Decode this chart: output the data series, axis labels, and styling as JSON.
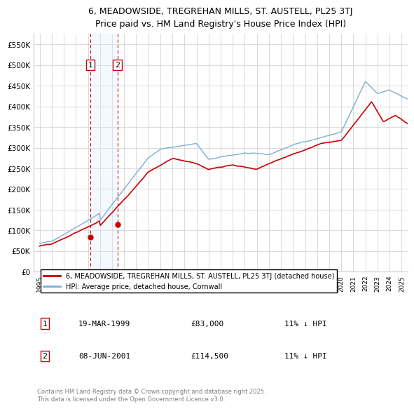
{
  "title": "6, MEADOWSIDE, TREGREHAN MILLS, ST. AUSTELL, PL25 3TJ",
  "subtitle": "Price paid vs. HM Land Registry's House Price Index (HPI)",
  "ylabel_ticks": [
    "£0",
    "£50K",
    "£100K",
    "£150K",
    "£200K",
    "£250K",
    "£300K",
    "£350K",
    "£400K",
    "£450K",
    "£500K",
    "£550K"
  ],
  "ylim": [
    0,
    575000
  ],
  "xlim": [
    1994.5,
    2025.5
  ],
  "legend_line1": "6, MEADOWSIDE, TREGREHAN MILLS, ST. AUSTELL, PL25 3TJ (detached house)",
  "legend_line2": "HPI: Average price, detached house, Cornwall",
  "transaction1_date": "19-MAR-1999",
  "transaction1_price": "£83,000",
  "transaction1_note": "11% ↓ HPI",
  "transaction2_date": "08-JUN-2001",
  "transaction2_price": "£114,500",
  "transaction2_note": "11% ↓ HPI",
  "footnote1": "Contains HM Land Registry data © Crown copyright and database right 2025.",
  "footnote2": "This data is licensed under the Open Government Licence v3.0.",
  "transaction1_year": 1999.21,
  "transaction2_year": 2001.44,
  "transaction1_price_val": 83000,
  "transaction2_price_val": 114500,
  "red_color": "#cc0000",
  "blue_color": "#7ab0d4",
  "shade_color": "#ddeeff",
  "grid_color": "#cccccc",
  "background_color": "#ffffff"
}
